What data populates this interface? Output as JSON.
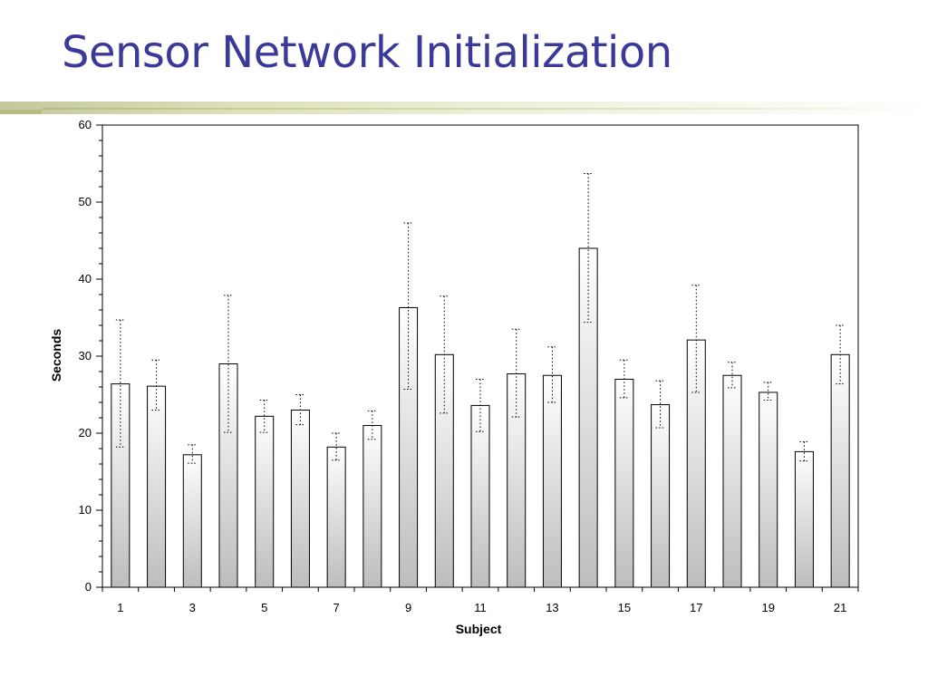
{
  "slide": {
    "title": "Sensor Network Initialization"
  },
  "chart_data": {
    "type": "bar",
    "title": "",
    "xlabel": "Subject",
    "ylabel": "Seconds",
    "ylim": [
      0,
      60
    ],
    "yticks": [
      0,
      10,
      20,
      30,
      40,
      50,
      60
    ],
    "categories": [
      "1",
      "2",
      "3",
      "4",
      "5",
      "6",
      "7",
      "8",
      "9",
      "10",
      "11",
      "12",
      "13",
      "14",
      "15",
      "16",
      "17",
      "18",
      "19",
      "20",
      "21"
    ],
    "xtick_labels": [
      "1",
      "3",
      "5",
      "7",
      "9",
      "11",
      "13",
      "15",
      "17",
      "19",
      "21"
    ],
    "values": [
      26.4,
      26.1,
      17.2,
      29.0,
      22.2,
      23.0,
      18.2,
      21.0,
      36.3,
      30.2,
      23.6,
      27.7,
      27.5,
      44.0,
      27.0,
      23.7,
      32.1,
      27.5,
      25.3,
      17.6,
      30.2
    ],
    "error_low": [
      18.2,
      23.0,
      16.1,
      20.1,
      20.1,
      21.1,
      16.5,
      19.2,
      25.7,
      22.6,
      20.2,
      22.1,
      24.0,
      34.4,
      24.6,
      20.7,
      25.3,
      25.9,
      24.3,
      16.4,
      26.4
    ],
    "error_high": [
      34.7,
      29.5,
      18.5,
      37.9,
      24.3,
      25.0,
      20.0,
      22.9,
      47.3,
      37.8,
      27.0,
      33.5,
      31.2,
      53.7,
      29.5,
      26.8,
      39.2,
      29.2,
      26.6,
      18.9,
      34.0
    ],
    "grid": false,
    "legend": "none",
    "colors": {
      "bar_top": "#ffffff",
      "bar_bottom": "#bdbdbd",
      "stroke": "#000000",
      "title": "#3b3a99"
    }
  }
}
